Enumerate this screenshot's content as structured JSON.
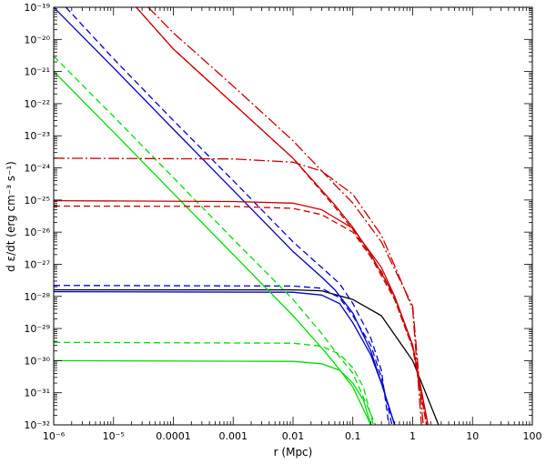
{
  "chart_data": {
    "type": "line",
    "xlabel": "r (Mpc)",
    "ylabel": "d ε/dt (erg cm⁻³ s⁻¹)",
    "x_scale": "log",
    "y_scale": "log",
    "xlim": [
      1e-06,
      100
    ],
    "ylim": [
      1e-32,
      1e-19
    ],
    "grid": false,
    "x_tick_labels": [
      {
        "value": 1e-06,
        "label": "10⁻⁶"
      },
      {
        "value": 1e-05,
        "label": "10⁻⁵"
      },
      {
        "value": 0.0001,
        "label": "0.0001"
      },
      {
        "value": 0.001,
        "label": "0.001"
      },
      {
        "value": 0.01,
        "label": "0.01"
      },
      {
        "value": 0.1,
        "label": "0.1"
      },
      {
        "value": 1,
        "label": "1"
      },
      {
        "value": 10,
        "label": "10"
      },
      {
        "value": 100,
        "label": "100"
      }
    ],
    "y_tick_labels": [
      {
        "value": 1e-19,
        "label": "10⁻¹⁹"
      },
      {
        "value": 1e-20,
        "label": "10⁻²⁰"
      },
      {
        "value": 1e-21,
        "label": "10⁻²¹"
      },
      {
        "value": 1e-22,
        "label": "10⁻²²"
      },
      {
        "value": 1e-23,
        "label": "10⁻²³"
      },
      {
        "value": 1e-24,
        "label": "10⁻²⁴"
      },
      {
        "value": 1e-25,
        "label": "10⁻²⁵"
      },
      {
        "value": 1e-26,
        "label": "10⁻²⁶"
      },
      {
        "value": 1e-27,
        "label": "10⁻²⁷"
      },
      {
        "value": 1e-28,
        "label": "10⁻²⁸"
      },
      {
        "value": 1e-29,
        "label": "10⁻²⁹"
      },
      {
        "value": 1e-30,
        "label": "10⁻³⁰"
      },
      {
        "value": 1e-31,
        "label": "10⁻³¹"
      },
      {
        "value": 1e-32,
        "label": "10⁻³²"
      }
    ],
    "series": [
      {
        "color": "#000000",
        "dash": "solid",
        "points": [
          [
            1e-06,
            1.6e-28
          ],
          [
            0.01,
            1.6e-28
          ],
          [
            0.03,
            1.5e-28
          ],
          [
            0.1,
            8e-29
          ],
          [
            0.3,
            2.5e-29
          ],
          [
            1,
            1e-30
          ],
          [
            2.7,
            1e-32
          ]
        ]
      },
      {
        "color": "#0000cc",
        "dash": "solid",
        "points": [
          [
            1e-06,
            1e-19
          ],
          [
            1e-05,
            1.3e-21
          ],
          [
            0.0001,
            1.6e-23
          ],
          [
            0.001,
            2e-25
          ],
          [
            0.01,
            2.5e-27
          ],
          [
            0.03,
            4e-28
          ],
          [
            0.05,
            1.6e-28
          ],
          [
            0.1,
            3e-29
          ],
          [
            0.2,
            2e-30
          ],
          [
            0.3,
            2e-31
          ],
          [
            0.5,
            1e-32
          ]
        ]
      },
      {
        "color": "#0000cc",
        "dash": "dashed",
        "points": [
          [
            1.6e-06,
            1e-19
          ],
          [
            1e-05,
            2.5e-21
          ],
          [
            0.0001,
            3e-23
          ],
          [
            0.001,
            4e-25
          ],
          [
            0.01,
            5e-27
          ],
          [
            0.03,
            8e-28
          ],
          [
            0.06,
            2.5e-28
          ],
          [
            0.1,
            6e-29
          ],
          [
            0.2,
            5e-30
          ],
          [
            0.3,
            5e-31
          ],
          [
            0.4,
            1e-32
          ]
        ]
      },
      {
        "color": "#0000cc",
        "dash": "solid",
        "points": [
          [
            1e-06,
            1.4e-28
          ],
          [
            0.01,
            1.35e-28
          ],
          [
            0.03,
            1.1e-28
          ],
          [
            0.06,
            6e-29
          ],
          [
            0.1,
            1.5e-29
          ],
          [
            0.2,
            1.5e-30
          ],
          [
            0.3,
            2e-31
          ],
          [
            0.5,
            1e-32
          ]
        ]
      },
      {
        "color": "#0000cc",
        "dash": "dashed",
        "points": [
          [
            1e-06,
            2.2e-28
          ],
          [
            0.01,
            2.1e-28
          ],
          [
            0.03,
            1.8e-28
          ],
          [
            0.06,
            9e-29
          ],
          [
            0.1,
            2.5e-29
          ],
          [
            0.2,
            3e-30
          ],
          [
            0.3,
            3e-31
          ],
          [
            0.45,
            1e-32
          ]
        ]
      },
      {
        "color": "#00dd00",
        "dash": "solid",
        "points": [
          [
            1e-06,
            1e-21
          ],
          [
            1e-05,
            1.3e-23
          ],
          [
            0.0001,
            1.6e-25
          ],
          [
            0.001,
            2e-27
          ],
          [
            0.01,
            2.5e-29
          ],
          [
            0.03,
            2.5e-30
          ],
          [
            0.05,
            8e-31
          ],
          [
            0.1,
            1.5e-31
          ],
          [
            0.2,
            1e-32
          ]
        ]
      },
      {
        "color": "#00dd00",
        "dash": "dashed",
        "points": [
          [
            1e-06,
            3e-21
          ],
          [
            1e-05,
            4e-23
          ],
          [
            0.0001,
            5e-25
          ],
          [
            0.001,
            6e-27
          ],
          [
            0.01,
            8e-29
          ],
          [
            0.03,
            7e-30
          ],
          [
            0.05,
            2e-30
          ],
          [
            0.1,
            4e-31
          ],
          [
            0.24,
            1e-32
          ]
        ]
      },
      {
        "color": "#00dd00",
        "dash": "solid",
        "points": [
          [
            1e-06,
            1e-30
          ],
          [
            0.01,
            9.5e-31
          ],
          [
            0.03,
            8e-31
          ],
          [
            0.06,
            5e-31
          ],
          [
            0.1,
            2e-31
          ],
          [
            0.15,
            6e-32
          ],
          [
            0.2,
            1e-32
          ]
        ]
      },
      {
        "color": "#00dd00",
        "dash": "dashed",
        "points": [
          [
            1e-06,
            3.7e-30
          ],
          [
            0.01,
            3.5e-30
          ],
          [
            0.03,
            2.8e-30
          ],
          [
            0.06,
            1.6e-30
          ],
          [
            0.1,
            6e-31
          ],
          [
            0.15,
            1.5e-31
          ],
          [
            0.22,
            1e-32
          ]
        ]
      },
      {
        "color": "#cc0000",
        "dash": "solid",
        "points": [
          [
            2.4e-05,
            1e-19
          ],
          [
            0.0001,
            5e-21
          ],
          [
            0.001,
            1e-22
          ],
          [
            0.01,
            2e-24
          ],
          [
            0.05,
            7e-26
          ],
          [
            0.1,
            1.4e-26
          ],
          [
            0.2,
            2e-27
          ],
          [
            0.5,
            1e-28
          ],
          [
            1,
            3e-30
          ],
          [
            1.8,
            1e-32
          ]
        ]
      },
      {
        "color": "#cc0000",
        "dash": "dashed",
        "points": [
          [
            2.4e-05,
            1e-19
          ],
          [
            0.0001,
            5e-21
          ],
          [
            0.001,
            1e-22
          ],
          [
            0.01,
            2e-24
          ],
          [
            0.05,
            6e-26
          ],
          [
            0.1,
            1.2e-26
          ],
          [
            0.2,
            1.7e-27
          ],
          [
            0.5,
            8e-29
          ],
          [
            1,
            2.5e-30
          ],
          [
            1.7,
            1e-32
          ]
        ]
      },
      {
        "color": "#cc0000",
        "dash": "solid",
        "points": [
          [
            1e-06,
            9.5e-26
          ],
          [
            0.001,
            9e-26
          ],
          [
            0.01,
            8e-26
          ],
          [
            0.03,
            5e-26
          ],
          [
            0.1,
            1.3e-26
          ],
          [
            0.3,
            8e-28
          ],
          [
            0.5,
            1e-28
          ],
          [
            1,
            3e-30
          ],
          [
            1.8,
            1e-32
          ]
        ]
      },
      {
        "color": "#cc0000",
        "dash": "dashed",
        "points": [
          [
            1e-06,
            6.5e-26
          ],
          [
            0.001,
            6.3e-26
          ],
          [
            0.01,
            5.5e-26
          ],
          [
            0.03,
            3.5e-26
          ],
          [
            0.1,
            1e-26
          ],
          [
            0.3,
            6e-28
          ],
          [
            0.5,
            8e-29
          ],
          [
            1,
            2.5e-30
          ],
          [
            1.7,
            1e-32
          ]
        ]
      },
      {
        "color": "#cc0000",
        "dash": "dashdot",
        "points": [
          [
            3.8e-05,
            1e-19
          ],
          [
            0.0001,
            1.6e-20
          ],
          [
            0.001,
            3.5e-22
          ],
          [
            0.01,
            7e-24
          ],
          [
            0.05,
            3e-25
          ],
          [
            0.1,
            8e-26
          ],
          [
            0.3,
            5e-27
          ],
          [
            0.5,
            7e-28
          ],
          [
            1,
            5e-29
          ],
          [
            1.5,
            1e-32
          ]
        ]
      },
      {
        "color": "#cc0000",
        "dash": "dashdot",
        "points": [
          [
            1e-06,
            2e-24
          ],
          [
            0.001,
            1.9e-24
          ],
          [
            0.01,
            1.5e-24
          ],
          [
            0.03,
            8e-25
          ],
          [
            0.1,
            1.5e-25
          ],
          [
            0.3,
            8e-27
          ],
          [
            0.5,
            9e-28
          ],
          [
            1,
            4e-29
          ],
          [
            1.4,
            1e-32
          ]
        ]
      }
    ]
  }
}
